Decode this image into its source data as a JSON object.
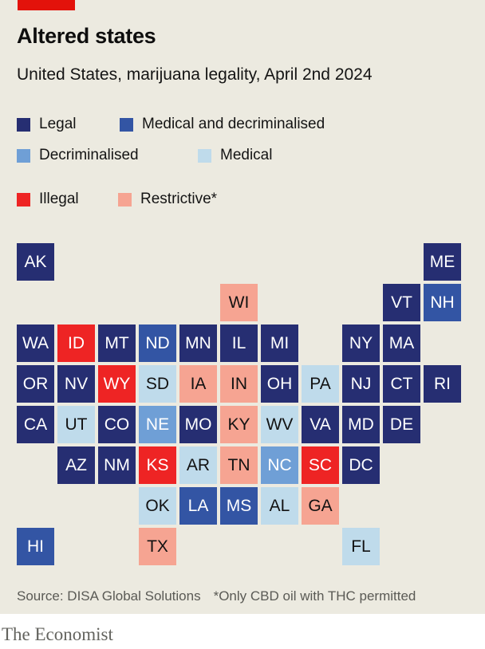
{
  "header": {
    "title": "Altered states",
    "subtitle": "United States, marijuana legality, April 2nd 2024"
  },
  "colors": {
    "accent_red": {
      "bg": "#E3120B"
    },
    "background": {
      "bg": "#ECEAE0"
    },
    "legal": {
      "bg": "#262e72",
      "text": "#ffffff"
    },
    "medical_decriminalised": {
      "bg": "#3355a4",
      "text": "#ffffff"
    },
    "decriminalised": {
      "bg": "#6f9fd6",
      "text": "#ffffff"
    },
    "medical": {
      "bg": "#bfdbeb",
      "text": "#121212"
    },
    "illegal": {
      "bg": "#ee2424",
      "text": "#ffffff"
    },
    "restrictive": {
      "bg": "#f6a492",
      "text": "#121212"
    }
  },
  "legend": {
    "items": [
      {
        "key": "legal",
        "label": "Legal"
      },
      {
        "key": "medical_decriminalised",
        "label": "Medical and decriminalised"
      },
      {
        "key": "decriminalised",
        "label": "Decriminalised"
      },
      {
        "key": "medical",
        "label": "Medical"
      },
      {
        "key": "illegal",
        "label": "Illegal"
      },
      {
        "key": "restrictive",
        "label": "Restrictive*"
      }
    ]
  },
  "map": {
    "tiles": [
      {
        "abbr": "AK",
        "row": 1,
        "col": 1,
        "status": "legal"
      },
      {
        "abbr": "ME",
        "row": 1,
        "col": 11,
        "status": "legal"
      },
      {
        "abbr": "WI",
        "row": 2,
        "col": 6,
        "status": "restrictive"
      },
      {
        "abbr": "VT",
        "row": 2,
        "col": 10,
        "status": "legal"
      },
      {
        "abbr": "NH",
        "row": 2,
        "col": 11,
        "status": "medical_decriminalised"
      },
      {
        "abbr": "WA",
        "row": 3,
        "col": 1,
        "status": "legal"
      },
      {
        "abbr": "ID",
        "row": 3,
        "col": 2,
        "status": "illegal"
      },
      {
        "abbr": "MT",
        "row": 3,
        "col": 3,
        "status": "legal"
      },
      {
        "abbr": "ND",
        "row": 3,
        "col": 4,
        "status": "medical_decriminalised"
      },
      {
        "abbr": "MN",
        "row": 3,
        "col": 5,
        "status": "legal"
      },
      {
        "abbr": "IL",
        "row": 3,
        "col": 6,
        "status": "legal"
      },
      {
        "abbr": "MI",
        "row": 3,
        "col": 7,
        "status": "legal"
      },
      {
        "abbr": "NY",
        "row": 3,
        "col": 9,
        "status": "legal"
      },
      {
        "abbr": "MA",
        "row": 3,
        "col": 10,
        "status": "legal"
      },
      {
        "abbr": "OR",
        "row": 4,
        "col": 1,
        "status": "legal"
      },
      {
        "abbr": "NV",
        "row": 4,
        "col": 2,
        "status": "legal"
      },
      {
        "abbr": "WY",
        "row": 4,
        "col": 3,
        "status": "illegal"
      },
      {
        "abbr": "SD",
        "row": 4,
        "col": 4,
        "status": "medical"
      },
      {
        "abbr": "IA",
        "row": 4,
        "col": 5,
        "status": "restrictive"
      },
      {
        "abbr": "IN",
        "row": 4,
        "col": 6,
        "status": "restrictive"
      },
      {
        "abbr": "OH",
        "row": 4,
        "col": 7,
        "status": "legal"
      },
      {
        "abbr": "PA",
        "row": 4,
        "col": 8,
        "status": "medical"
      },
      {
        "abbr": "NJ",
        "row": 4,
        "col": 9,
        "status": "legal"
      },
      {
        "abbr": "CT",
        "row": 4,
        "col": 10,
        "status": "legal"
      },
      {
        "abbr": "RI",
        "row": 4,
        "col": 11,
        "status": "legal"
      },
      {
        "abbr": "CA",
        "row": 5,
        "col": 1,
        "status": "legal"
      },
      {
        "abbr": "UT",
        "row": 5,
        "col": 2,
        "status": "medical"
      },
      {
        "abbr": "CO",
        "row": 5,
        "col": 3,
        "status": "legal"
      },
      {
        "abbr": "NE",
        "row": 5,
        "col": 4,
        "status": "decriminalised"
      },
      {
        "abbr": "MO",
        "row": 5,
        "col": 5,
        "status": "legal"
      },
      {
        "abbr": "KY",
        "row": 5,
        "col": 6,
        "status": "restrictive"
      },
      {
        "abbr": "WV",
        "row": 5,
        "col": 7,
        "status": "medical"
      },
      {
        "abbr": "VA",
        "row": 5,
        "col": 8,
        "status": "legal"
      },
      {
        "abbr": "MD",
        "row": 5,
        "col": 9,
        "status": "legal"
      },
      {
        "abbr": "DE",
        "row": 5,
        "col": 10,
        "status": "legal"
      },
      {
        "abbr": "AZ",
        "row": 6,
        "col": 2,
        "status": "legal"
      },
      {
        "abbr": "NM",
        "row": 6,
        "col": 3,
        "status": "legal"
      },
      {
        "abbr": "KS",
        "row": 6,
        "col": 4,
        "status": "illegal"
      },
      {
        "abbr": "AR",
        "row": 6,
        "col": 5,
        "status": "medical"
      },
      {
        "abbr": "TN",
        "row": 6,
        "col": 6,
        "status": "restrictive"
      },
      {
        "abbr": "NC",
        "row": 6,
        "col": 7,
        "status": "decriminalised"
      },
      {
        "abbr": "SC",
        "row": 6,
        "col": 8,
        "status": "illegal"
      },
      {
        "abbr": "DC",
        "row": 6,
        "col": 9,
        "status": "legal"
      },
      {
        "abbr": "OK",
        "row": 7,
        "col": 4,
        "status": "medical"
      },
      {
        "abbr": "LA",
        "row": 7,
        "col": 5,
        "status": "medical_decriminalised"
      },
      {
        "abbr": "MS",
        "row": 7,
        "col": 6,
        "status": "medical_decriminalised"
      },
      {
        "abbr": "AL",
        "row": 7,
        "col": 7,
        "status": "medical"
      },
      {
        "abbr": "GA",
        "row": 7,
        "col": 8,
        "status": "restrictive"
      },
      {
        "abbr": "HI",
        "row": 8,
        "col": 1,
        "status": "medical_decriminalised"
      },
      {
        "abbr": "TX",
        "row": 8,
        "col": 4,
        "status": "restrictive"
      },
      {
        "abbr": "FL",
        "row": 8,
        "col": 9,
        "status": "medical"
      }
    ]
  },
  "footer": {
    "source": "Source: DISA Global Solutions",
    "note": "*Only CBD oil with THC permitted",
    "brand": "The Economist"
  },
  "chart_data": {
    "type": "heatmap",
    "title": "Altered states",
    "subtitle": "United States, marijuana legality, April 2nd 2024",
    "categories": [
      "Legal",
      "Medical and decriminalised",
      "Decriminalised",
      "Medical",
      "Illegal",
      "Restrictive*"
    ],
    "series": [
      {
        "name": "Legal",
        "values": [
          "AK",
          "ME",
          "VT",
          "WA",
          "MT",
          "MN",
          "IL",
          "MI",
          "NY",
          "MA",
          "OR",
          "NV",
          "OH",
          "NJ",
          "CT",
          "RI",
          "CA",
          "CO",
          "MO",
          "VA",
          "MD",
          "DE",
          "AZ",
          "NM",
          "DC"
        ]
      },
      {
        "name": "Medical and decriminalised",
        "values": [
          "NH",
          "ND",
          "LA",
          "MS",
          "HI"
        ]
      },
      {
        "name": "Decriminalised",
        "values": [
          "NE",
          "NC"
        ]
      },
      {
        "name": "Medical",
        "values": [
          "SD",
          "PA",
          "UT",
          "WV",
          "AR",
          "OK",
          "AL",
          "FL"
        ]
      },
      {
        "name": "Illegal",
        "values": [
          "ID",
          "WY",
          "KS",
          "SC"
        ]
      },
      {
        "name": "Restrictive*",
        "values": [
          "WI",
          "IA",
          "IN",
          "KY",
          "TN",
          "GA",
          "TX"
        ]
      }
    ],
    "layout": "US state tile-grid cartogram, 11 columns x 8 rows",
    "legend_position": "top",
    "source": "Source: DISA Global Solutions",
    "footnote": "*Only CBD oil with THC permitted"
  }
}
